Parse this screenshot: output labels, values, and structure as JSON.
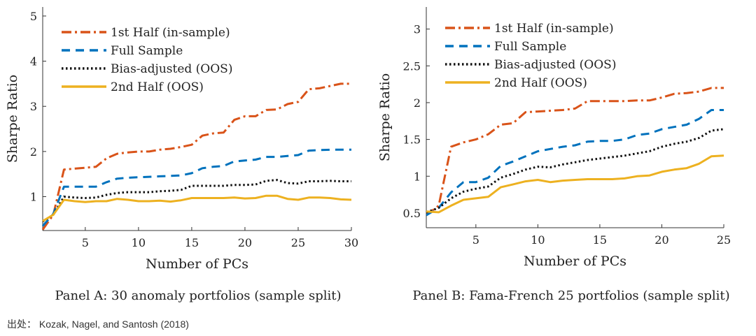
{
  "chart_data": [
    {
      "type": "line",
      "panel": "A",
      "caption": "Panel A: 30 anomaly portfolios (sample split)",
      "xlabel": "Number of PCs",
      "ylabel": "Sharpe Ratio",
      "xlim": [
        1,
        30
      ],
      "ylim": [
        0.25,
        5.2
      ],
      "xticks": [
        5,
        10,
        15,
        20,
        25,
        30
      ],
      "yticks": [
        1,
        2,
        3,
        4,
        5
      ],
      "grid": false,
      "legend_position": "top-left",
      "x": [
        1,
        2,
        3,
        4,
        5,
        6,
        7,
        8,
        9,
        10,
        11,
        12,
        13,
        14,
        15,
        16,
        17,
        18,
        19,
        20,
        21,
        22,
        23,
        24,
        25,
        26,
        27,
        28,
        29,
        30
      ],
      "series": [
        {
          "name": "1st Half (in-sample)",
          "color": "#D95319",
          "dash": "dashdot",
          "values": [
            0.27,
            0.6,
            1.6,
            1.62,
            1.64,
            1.66,
            1.85,
            1.95,
            1.98,
            2.0,
            2.0,
            2.04,
            2.06,
            2.1,
            2.15,
            2.35,
            2.4,
            2.42,
            2.7,
            2.78,
            2.78,
            2.92,
            2.93,
            3.05,
            3.1,
            3.38,
            3.4,
            3.45,
            3.5,
            3.5
          ]
        },
        {
          "name": "Full Sample",
          "color": "#0072BD",
          "dash": "dash",
          "values": [
            0.35,
            0.62,
            1.22,
            1.22,
            1.22,
            1.22,
            1.32,
            1.4,
            1.42,
            1.43,
            1.44,
            1.45,
            1.46,
            1.47,
            1.52,
            1.63,
            1.66,
            1.68,
            1.78,
            1.8,
            1.82,
            1.88,
            1.88,
            1.9,
            1.92,
            2.02,
            2.03,
            2.04,
            2.04,
            2.04
          ]
        },
        {
          "name": "Bias-adjusted (OOS)",
          "color": "#111111",
          "dash": "dot",
          "values": [
            0.45,
            0.6,
            1.0,
            0.98,
            0.97,
            0.98,
            1.04,
            1.08,
            1.1,
            1.1,
            1.1,
            1.12,
            1.13,
            1.15,
            1.24,
            1.24,
            1.24,
            1.24,
            1.26,
            1.26,
            1.27,
            1.35,
            1.37,
            1.3,
            1.29,
            1.34,
            1.34,
            1.35,
            1.34,
            1.34
          ]
        },
        {
          "name": "2nd Half (OOS)",
          "color": "#EDB120",
          "dash": "solid",
          "values": [
            0.46,
            0.6,
            0.93,
            0.9,
            0.88,
            0.9,
            0.9,
            0.95,
            0.93,
            0.9,
            0.9,
            0.91,
            0.89,
            0.92,
            0.97,
            0.97,
            0.97,
            0.97,
            0.98,
            0.96,
            0.97,
            1.02,
            1.02,
            0.95,
            0.93,
            0.98,
            0.98,
            0.97,
            0.94,
            0.93
          ]
        }
      ]
    },
    {
      "type": "line",
      "panel": "B",
      "caption": "Panel B: Fama-French 25 portfolios (sample split)",
      "xlabel": "Number of PCs",
      "ylabel": "Sharpe Ratio",
      "xlim": [
        1,
        25
      ],
      "ylim": [
        0.3,
        3.3
      ],
      "xticks": [
        5,
        10,
        15,
        20,
        25
      ],
      "yticks": [
        0.5,
        1,
        1.5,
        2,
        2.5,
        3
      ],
      "grid": false,
      "legend_position": "top-left",
      "x": [
        1,
        2,
        3,
        4,
        5,
        6,
        7,
        8,
        9,
        10,
        11,
        12,
        13,
        14,
        15,
        16,
        17,
        18,
        19,
        20,
        21,
        22,
        23,
        24,
        25
      ],
      "series": [
        {
          "name": "1st Half (in-sample)",
          "color": "#D95319",
          "dash": "dashdot",
          "values": [
            0.47,
            0.6,
            1.4,
            1.46,
            1.5,
            1.57,
            1.7,
            1.72,
            1.87,
            1.88,
            1.89,
            1.9,
            1.92,
            2.02,
            2.02,
            2.02,
            2.02,
            2.03,
            2.03,
            2.07,
            2.12,
            2.13,
            2.15,
            2.2,
            2.2
          ]
        },
        {
          "name": "Full Sample",
          "color": "#0072BD",
          "dash": "dash",
          "values": [
            0.47,
            0.57,
            0.78,
            0.92,
            0.92,
            0.98,
            1.14,
            1.2,
            1.27,
            1.34,
            1.37,
            1.4,
            1.42,
            1.47,
            1.48,
            1.48,
            1.5,
            1.56,
            1.58,
            1.64,
            1.67,
            1.7,
            1.78,
            1.9,
            1.9
          ]
        },
        {
          "name": "Bias-adjusted (OOS)",
          "color": "#111111",
          "dash": "dot",
          "values": [
            0.51,
            0.57,
            0.7,
            0.79,
            0.83,
            0.86,
            0.98,
            1.03,
            1.09,
            1.13,
            1.12,
            1.16,
            1.19,
            1.22,
            1.24,
            1.26,
            1.28,
            1.31,
            1.34,
            1.4,
            1.44,
            1.47,
            1.52,
            1.62,
            1.64
          ]
        },
        {
          "name": "2nd Half (OOS)",
          "color": "#EDB120",
          "dash": "solid",
          "values": [
            0.52,
            0.51,
            0.6,
            0.68,
            0.7,
            0.72,
            0.85,
            0.89,
            0.93,
            0.95,
            0.92,
            0.94,
            0.95,
            0.96,
            0.96,
            0.96,
            0.97,
            1.0,
            1.01,
            1.06,
            1.09,
            1.11,
            1.17,
            1.27,
            1.28
          ]
        }
      ]
    }
  ],
  "source": "出处： Kozak, Nagel, and Santosh (2018)"
}
